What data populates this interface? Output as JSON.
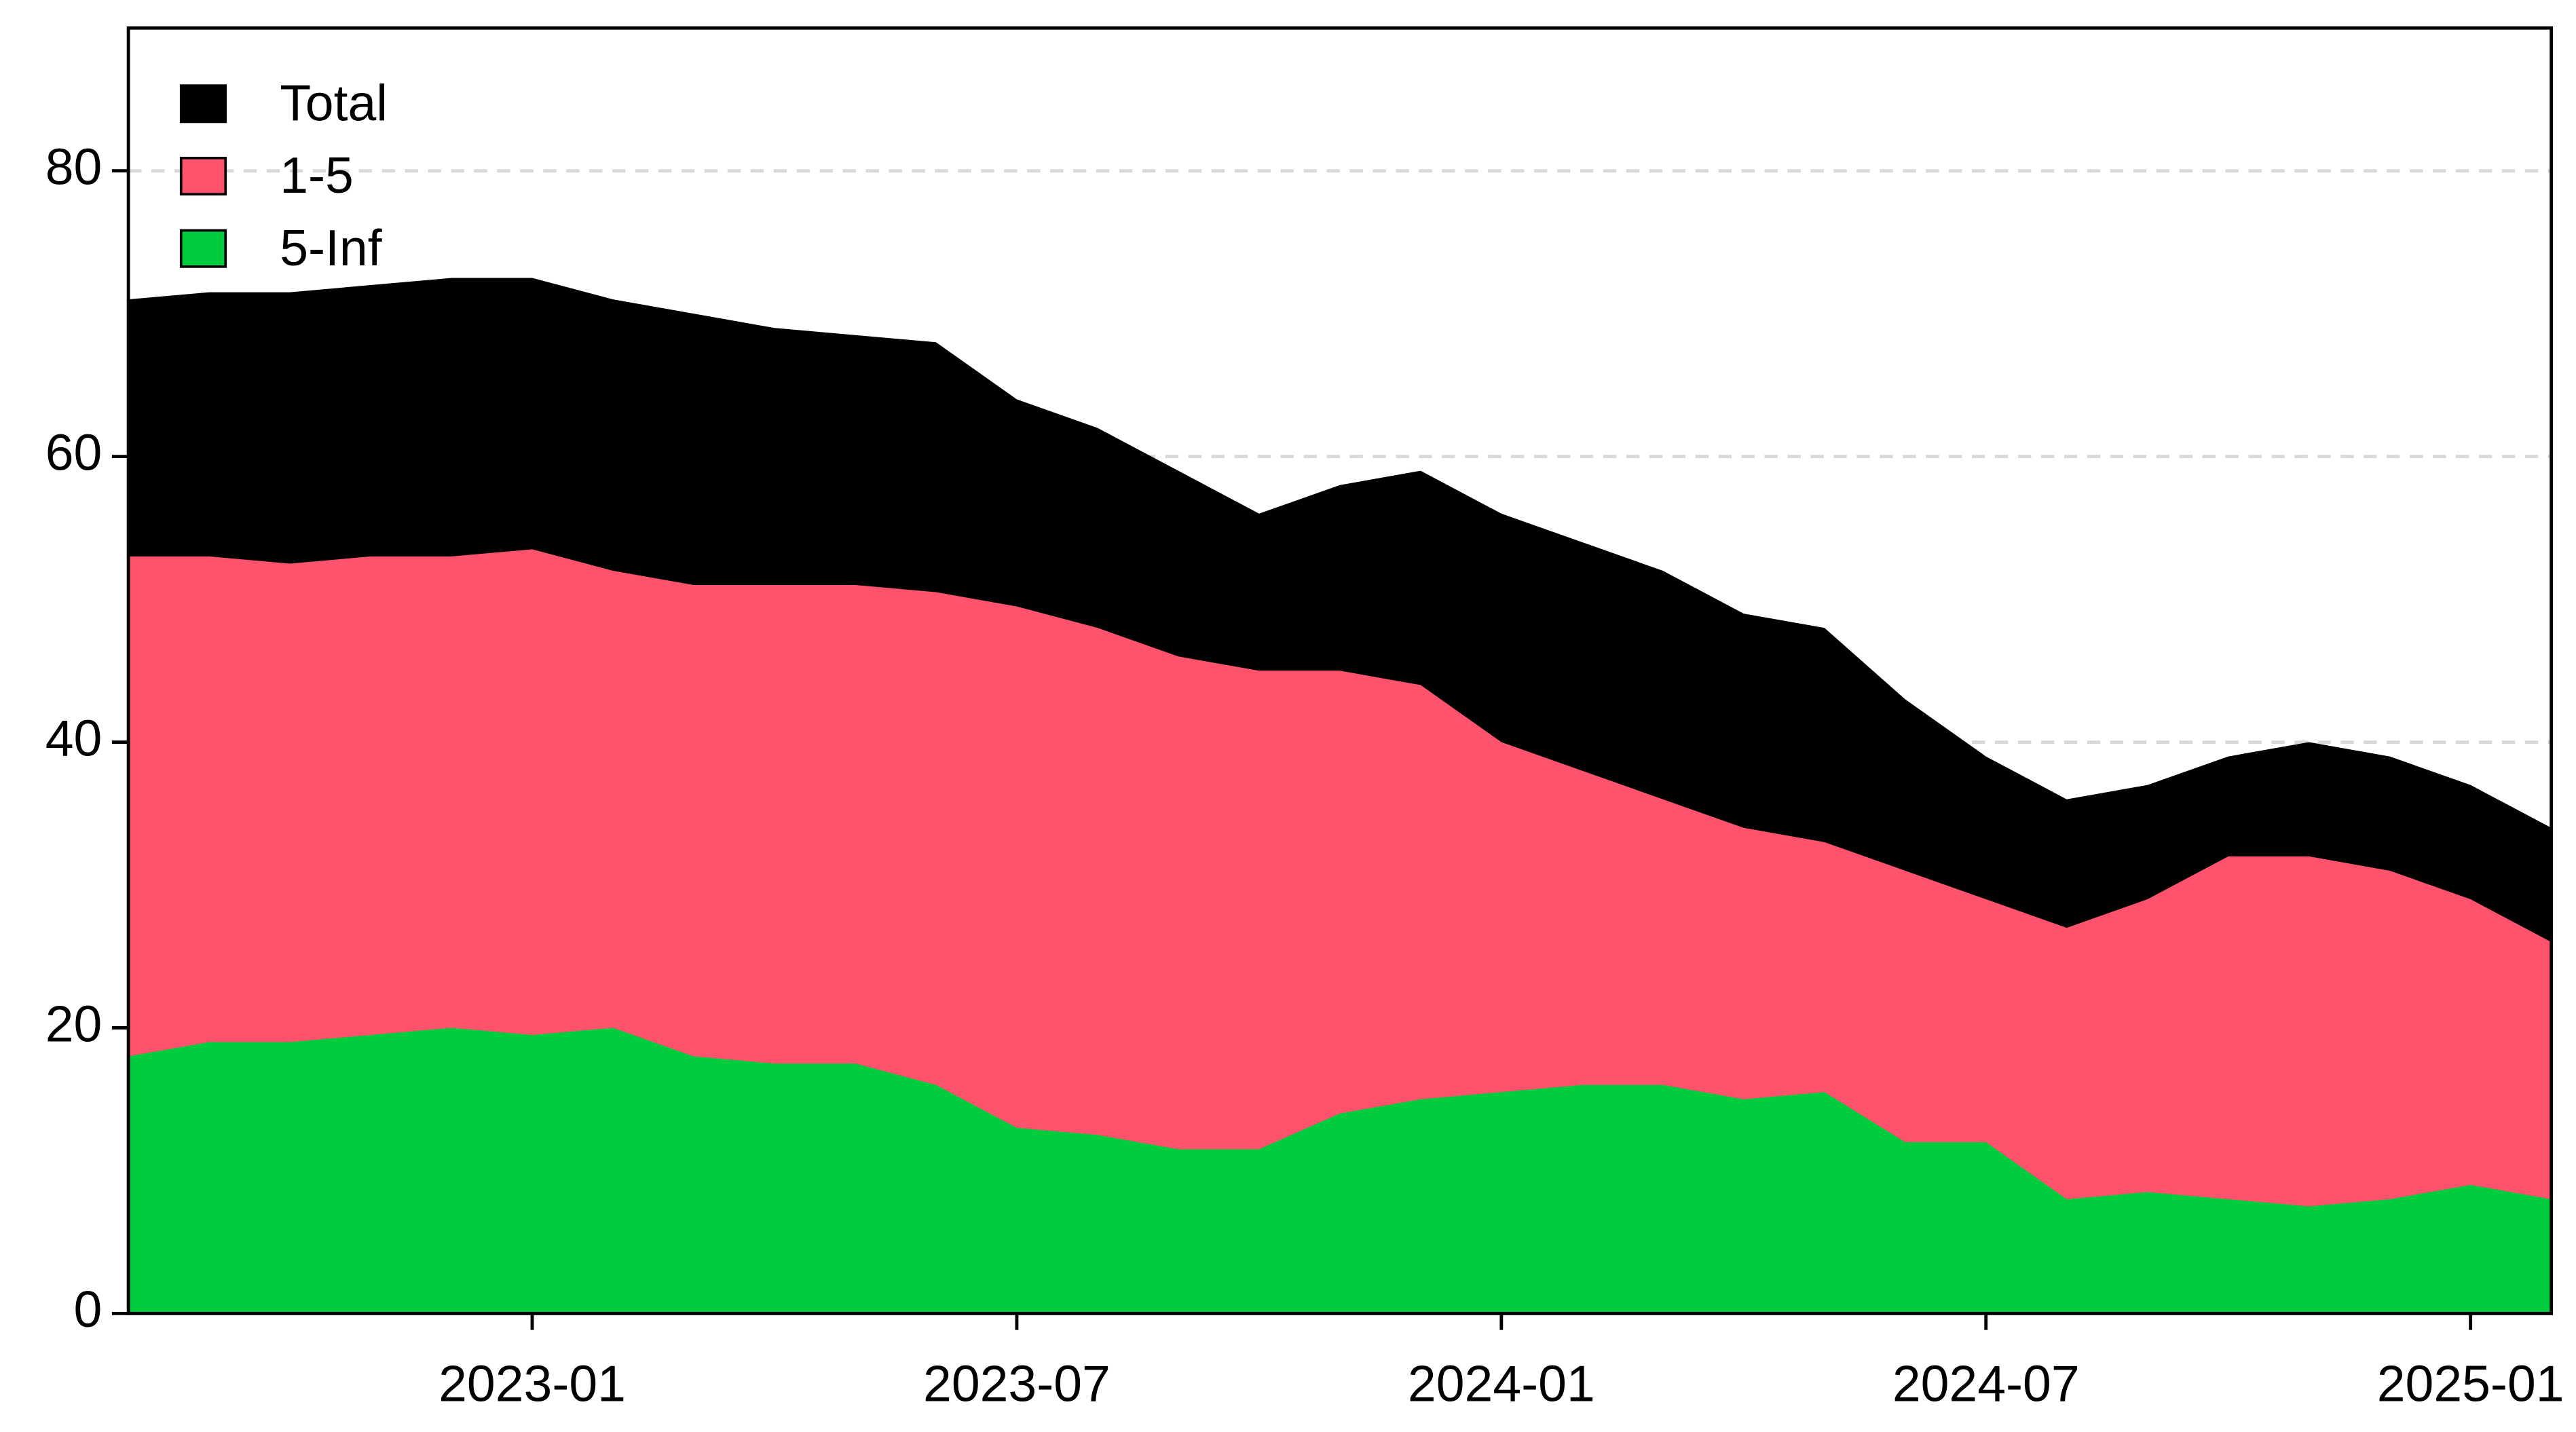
{
  "chart_data": {
    "type": "area",
    "x": [
      "2022-08",
      "2022-09",
      "2022-10",
      "2022-11",
      "2022-12",
      "2023-01",
      "2023-02",
      "2023-03",
      "2023-04",
      "2023-05",
      "2023-06",
      "2023-07",
      "2023-08",
      "2023-09",
      "2023-10",
      "2023-11",
      "2023-12",
      "2024-01",
      "2024-02",
      "2024-03",
      "2024-04",
      "2024-05",
      "2024-06",
      "2024-07",
      "2024-08",
      "2024-09",
      "2024-10",
      "2024-11",
      "2024-12",
      "2025-01",
      "2025-02"
    ],
    "series": [
      {
        "name": "Total",
        "color": "#000000",
        "values": [
          71,
          71.5,
          71.5,
          72,
          72.5,
          72.5,
          71,
          70,
          69,
          68.5,
          68,
          64,
          62,
          59,
          56,
          58,
          59,
          56,
          54,
          52,
          49,
          48,
          43,
          39,
          36,
          37,
          39,
          40,
          39,
          37,
          34
        ]
      },
      {
        "name": "1-5",
        "color": "#ff526d",
        "values": [
          53,
          53,
          52.5,
          53,
          53,
          53.5,
          52,
          51,
          51,
          51,
          50.5,
          49.5,
          48,
          46,
          45,
          45,
          44,
          40,
          38,
          36,
          34,
          33,
          31,
          29,
          27,
          29,
          32,
          32,
          31,
          29,
          26
        ]
      },
      {
        "name": "5-Inf",
        "color": "#00cd3e",
        "values": [
          18,
          19,
          19,
          19.5,
          20,
          19.5,
          20,
          18,
          17.5,
          17.5,
          16,
          13,
          12.5,
          11.5,
          11.5,
          14,
          15,
          15.5,
          16,
          16,
          15,
          15.5,
          12,
          12,
          8,
          8.5,
          8,
          7.5,
          8,
          9,
          8
        ]
      }
    ],
    "xlim": [
      "2022-08",
      "2025-02"
    ],
    "xticks": [
      "2023-01",
      "2023-07",
      "2024-01",
      "2024-07",
      "2025-01"
    ],
    "ylim": [
      0,
      90
    ],
    "yticks": [
      0,
      20,
      40,
      60,
      80
    ],
    "grid": true,
    "legend": "top-left"
  }
}
